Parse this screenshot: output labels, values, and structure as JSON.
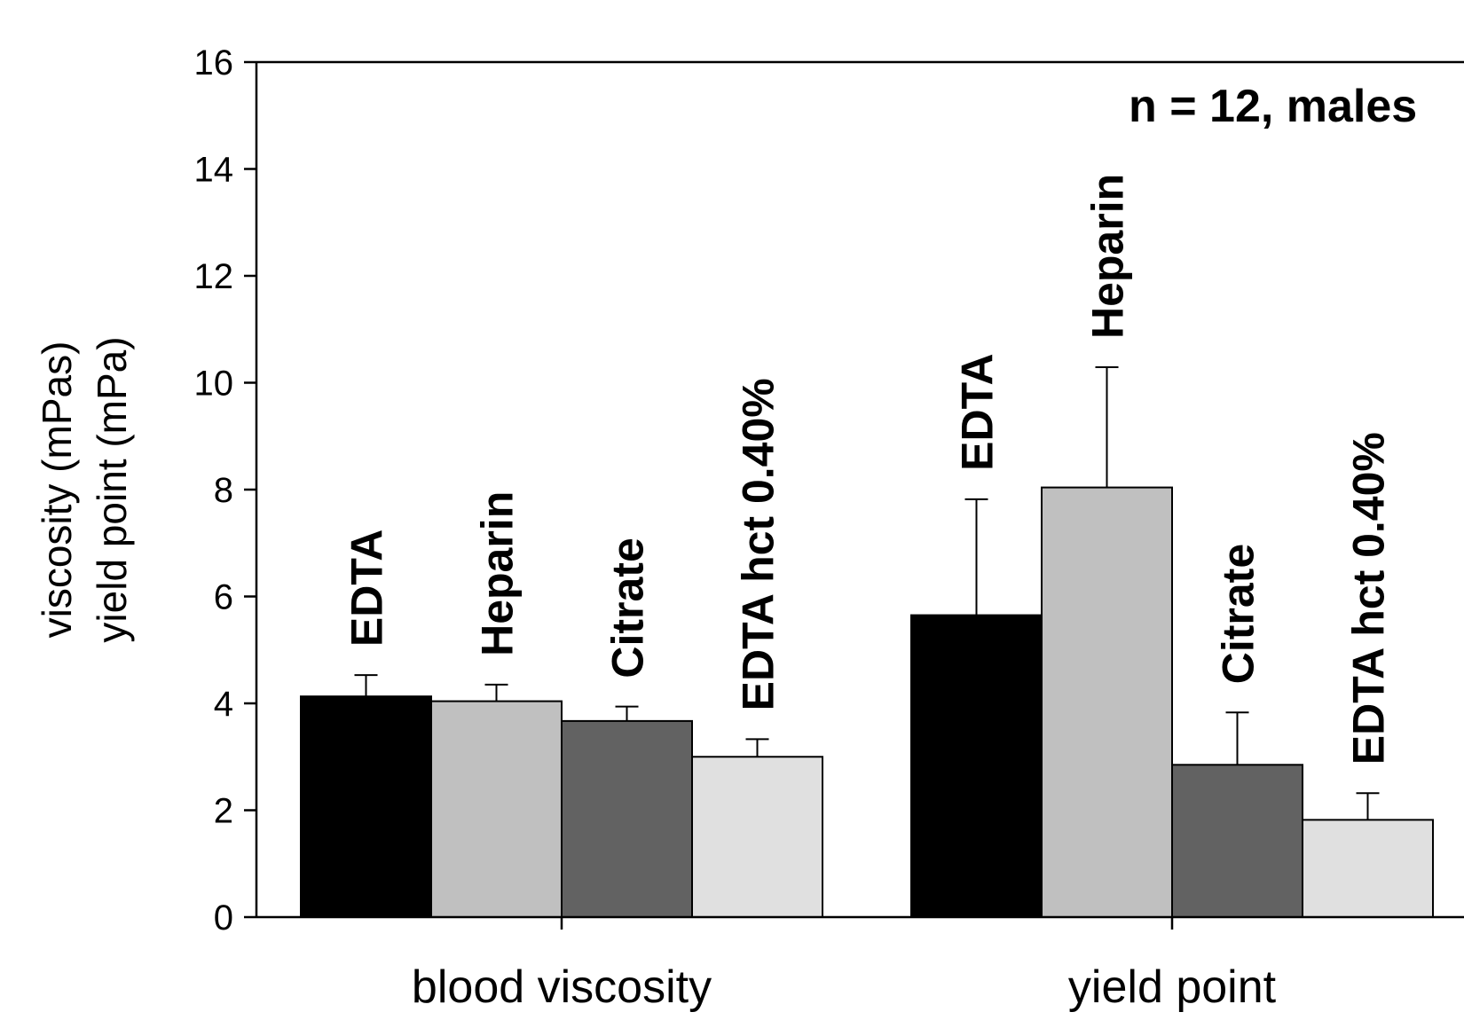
{
  "chart_data": {
    "type": "bar",
    "ylabel_line1": "viscosity (mPas)",
    "ylabel_line2": "yield point (mPa)",
    "annotation": "n = 12, males",
    "ylim": [
      0,
      16
    ],
    "yticks": [
      "0",
      "2",
      "4",
      "6",
      "8",
      "10",
      "12",
      "14",
      "16"
    ],
    "categories": [
      "blood viscosity",
      "yield point"
    ],
    "series": [
      {
        "name": "EDTA",
        "color": "#000000",
        "values": [
          4.13,
          5.65
        ],
        "errors": [
          0.4,
          2.17
        ]
      },
      {
        "name": "Heparin",
        "color": "#c0c0c0",
        "values": [
          4.04,
          8.04
        ],
        "errors": [
          0.31,
          2.25
        ]
      },
      {
        "name": "Citrate",
        "color": "#626262",
        "values": [
          3.67,
          2.85
        ],
        "errors": [
          0.27,
          0.98
        ]
      },
      {
        "name": "EDTA hct 0.40%",
        "color": "#e0e0e0",
        "values": [
          3.0,
          1.82
        ],
        "errors": [
          0.33,
          0.5
        ]
      }
    ]
  }
}
